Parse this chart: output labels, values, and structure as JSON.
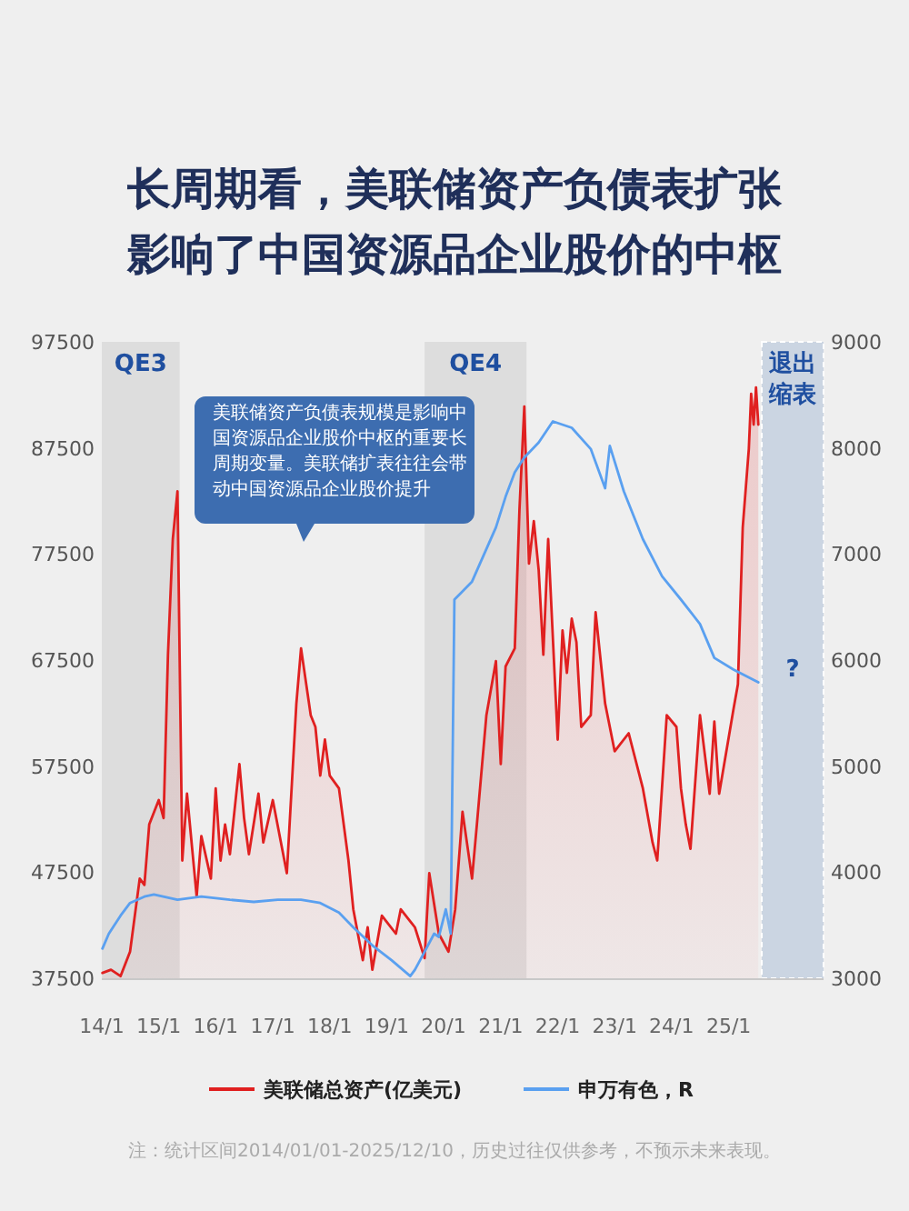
{
  "chart_data": {
    "type": "line",
    "title": "长周期看，美联储资产负债表扩张影响了中国资源品企业股价的中枢",
    "xlim": [
      "2014-01-01",
      "2026-09-01"
    ],
    "xticks": [
      {
        "value": "2014-01-01",
        "label": "14/1"
      },
      {
        "value": "2015-01-01",
        "label": "15/1"
      },
      {
        "value": "2016-01-01",
        "label": "16/1"
      },
      {
        "value": "2017-01-01",
        "label": "17/1"
      },
      {
        "value": "2018-01-01",
        "label": "18/1"
      },
      {
        "value": "2019-01-01",
        "label": "19/1"
      },
      {
        "value": "2020-01-01",
        "label": "20/1"
      },
      {
        "value": "2021-01-01",
        "label": "21/1"
      },
      {
        "value": "2022-01-01",
        "label": "22/1"
      },
      {
        "value": "2023-01-01",
        "label": "23/1"
      },
      {
        "value": "2024-01-01",
        "label": "24/1"
      },
      {
        "value": "2025-01-01",
        "label": "25/1"
      }
    ],
    "ylim": [
      37500,
      97500
    ],
    "yticks": [
      37500,
      47500,
      57500,
      67500,
      77500,
      87500,
      97500
    ],
    "y2lim": [
      3000,
      9000
    ],
    "y2ticks": [
      3000,
      4000,
      5000,
      6000,
      7000,
      8000,
      9000
    ],
    "legend": "bottom",
    "bands": [
      {
        "axis": "x",
        "from": "2014-01-01",
        "to": "2015-05-15",
        "label": "QE3",
        "color": "#d6d6d6"
      },
      {
        "axis": "x",
        "from": "2019-09-01",
        "to": "2021-06-15",
        "label": "QE4",
        "color": "#d6d6d6"
      },
      {
        "axis": "x",
        "from": "2025-08-01",
        "to": "2026-09-01",
        "label": "退出缩表",
        "color": "#bccbdd"
      }
    ],
    "annotations": [
      "美联储资产负债表规模是影响中国资源品企业股价中枢的重要长周期变量。美联储扩表往往会带动中国资源品企业股价提升",
      "?",
      "注：统计区间2014/01/01-2025/12/10，历史过往仅供参考，不预示未来表现。"
    ],
    "series": [
      {
        "name": "美联储总资产(亿美元)",
        "type": "area",
        "color": "#e02020",
        "x": [
          "2014-01-05",
          "2014-03-01",
          "2014-05-01",
          "2014-07-01",
          "2014-09-01",
          "2014-10-01",
          "2014-11-01",
          "2015-01-01",
          "2015-02-01",
          "2015-03-01",
          "2015-04-01",
          "2015-05-01",
          "2015-06-01",
          "2015-07-01",
          "2015-09-01",
          "2015-10-01",
          "2015-12-01",
          "2016-01-01",
          "2016-02-01",
          "2016-03-01",
          "2016-04-01",
          "2016-06-01",
          "2016-07-01",
          "2016-08-01",
          "2016-10-01",
          "2016-11-01",
          "2017-01-01",
          "2017-04-01",
          "2017-06-01",
          "2017-07-01",
          "2017-09-01",
          "2017-10-01",
          "2017-11-01",
          "2017-12-01",
          "2018-01-01",
          "2018-03-01",
          "2018-05-01",
          "2018-06-01",
          "2018-08-01",
          "2018-09-01",
          "2018-10-01",
          "2018-12-01",
          "2019-03-01",
          "2019-04-01",
          "2019-07-01",
          "2019-09-01",
          "2019-10-01",
          "2019-12-01",
          "2020-02-01",
          "2020-03-15",
          "2020-05-01",
          "2020-07-01",
          "2020-08-01",
          "2020-10-01",
          "2020-12-01",
          "2021-01-01",
          "2021-02-01",
          "2021-04-01",
          "2021-05-01",
          "2021-06-01",
          "2021-07-01",
          "2021-08-01",
          "2021-09-01",
          "2021-10-01",
          "2021-11-01",
          "2022-01-01",
          "2022-02-01",
          "2022-03-01",
          "2022-04-01",
          "2022-05-01",
          "2022-06-01",
          "2022-08-01",
          "2022-09-01",
          "2022-11-01",
          "2023-01-01",
          "2023-04-01",
          "2023-07-01",
          "2023-09-01",
          "2023-10-01",
          "2023-12-01",
          "2024-02-01",
          "2024-03-01",
          "2024-04-01",
          "2024-05-01",
          "2024-07-01",
          "2024-09-01",
          "2024-10-01",
          "2024-11-01",
          "2025-02-01",
          "2025-03-01",
          "2025-04-01",
          "2025-05-10",
          "2025-05-25",
          "2025-06-10",
          "2025-06-25",
          "2025-07-10"
        ],
        "values": [
          38000,
          38300,
          37700,
          40000,
          46900,
          46300,
          52000,
          54300,
          52600,
          68000,
          78900,
          83400,
          48600,
          54900,
          45200,
          50900,
          46900,
          55400,
          48600,
          52000,
          49200,
          57700,
          52600,
          49200,
          54900,
          50300,
          54300,
          47400,
          63400,
          68600,
          62300,
          61200,
          56600,
          60000,
          56600,
          55400,
          48600,
          44000,
          39200,
          42300,
          38300,
          43400,
          41700,
          44000,
          42300,
          39400,
          47400,
          41700,
          40000,
          44000,
          53200,
          46900,
          52000,
          62300,
          67400,
          57700,
          66900,
          68600,
          81700,
          91400,
          76600,
          80600,
          76000,
          68000,
          78900,
          60000,
          70300,
          66300,
          71400,
          69200,
          61200,
          62300,
          72000,
          63400,
          58900,
          60600,
          55400,
          50300,
          48600,
          62300,
          61200,
          55400,
          52000,
          49700,
          62300,
          54900,
          61700,
          54900,
          62900,
          65200,
          80000,
          87400,
          92600,
          89700,
          93200,
          89700
        ]
      },
      {
        "name": "申万有色，R",
        "axis": "y2",
        "color": "#5aa0f0",
        "x": [
          "2014-01-05",
          "2014-02-15",
          "2014-05-01",
          "2014-07-01",
          "2014-10-01",
          "2014-12-01",
          "2015-05-01",
          "2015-10-01",
          "2016-04-01",
          "2016-09-01",
          "2017-02-01",
          "2017-07-01",
          "2017-11-01",
          "2018-03-01",
          "2018-06-01",
          "2018-10-01",
          "2019-02-01",
          "2019-06-01",
          "2019-07-01",
          "2019-09-01",
          "2019-11-01",
          "2019-12-01",
          "2020-01-15",
          "2020-02-15",
          "2020-03-10",
          "2020-07-01",
          "2020-12-01",
          "2021-02-01",
          "2021-04-01",
          "2021-06-01",
          "2021-09-01",
          "2021-12-01",
          "2022-04-01",
          "2022-08-01",
          "2022-11-01",
          "2022-12-01",
          "2023-03-01",
          "2023-07-01",
          "2023-11-01",
          "2024-03-01",
          "2024-07-01",
          "2024-10-01",
          "2025-02-01",
          "2025-07-10"
        ],
        "values": [
          3280,
          3420,
          3590,
          3710,
          3770,
          3790,
          3740,
          3770,
          3740,
          3720,
          3740,
          3740,
          3710,
          3620,
          3480,
          3310,
          3170,
          3020,
          3080,
          3250,
          3420,
          3390,
          3650,
          3420,
          6570,
          6740,
          7250,
          7540,
          7770,
          7910,
          8050,
          8250,
          8190,
          7990,
          7620,
          8020,
          7590,
          7140,
          6790,
          6570,
          6340,
          6020,
          5910,
          5790
        ]
      }
    ]
  }
}
